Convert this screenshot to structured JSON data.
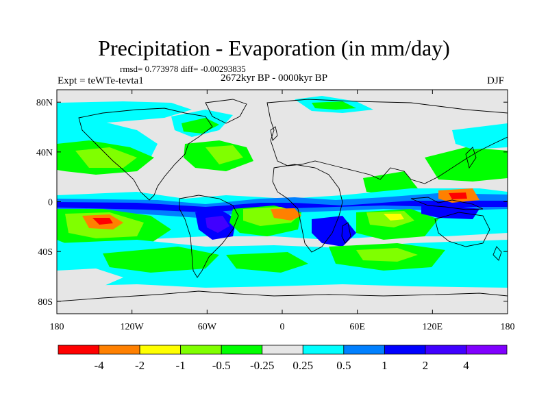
{
  "header": {
    "title": "Precipitation - Evaporation (in mm/day)",
    "stats": "rmsd= 0.773978 diff= -0.00293835",
    "experiment": "Expt = teWTe-tevta1",
    "period": "2672kyr BP - 0000kyr BP",
    "season": "DJF"
  },
  "axes": {
    "lat_ticks": [
      "80N",
      "40N",
      "0",
      "40S",
      "80S"
    ],
    "lat_values": [
      80,
      40,
      0,
      -40,
      -80
    ],
    "lon_ticks": [
      "180",
      "120W",
      "60W",
      "0",
      "60E",
      "120E",
      "180"
    ],
    "lon_values": [
      -180,
      -120,
      -60,
      0,
      60,
      120,
      180
    ],
    "lat_range": [
      -90,
      90
    ],
    "lon_range": [
      -180,
      180
    ]
  },
  "colorbar": {
    "labels": [
      "-4",
      "-2",
      "-1",
      "-0.5",
      "-0.25",
      "0.25",
      "0.5",
      "1",
      "2",
      "4"
    ],
    "colors": [
      "#ff0000",
      "#ff8000",
      "#ffff00",
      "#80ff00",
      "#00ff00",
      "#e6e6e6",
      "#00ffff",
      "#0080ff",
      "#0000ff",
      "#4000ff",
      "#8000ff"
    ]
  },
  "colors": {
    "background_land_zero": "#e6e6e6",
    "coastline": "#000000"
  }
}
